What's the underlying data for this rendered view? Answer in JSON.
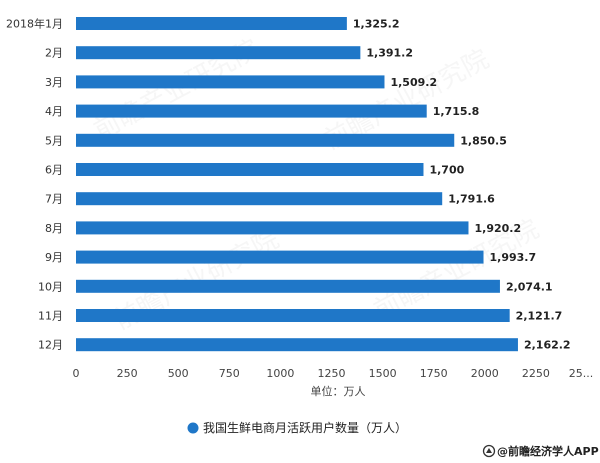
{
  "chart_data": {
    "type": "bar",
    "orientation": "horizontal",
    "categories": [
      "2018年1月",
      "2月",
      "3月",
      "4月",
      "5月",
      "6月",
      "7月",
      "8月",
      "9月",
      "10月",
      "11月",
      "12月"
    ],
    "values": [
      1325.2,
      1391.2,
      1509.2,
      1715.8,
      1850.5,
      1700,
      1791.6,
      1920.2,
      1993.7,
      2074.1,
      2121.7,
      2162.2
    ],
    "value_labels": [
      "1,325.2",
      "1,391.2",
      "1,509.2",
      "1,715.8",
      "1,850.5",
      "1,700",
      "1,791.6",
      "1,920.2",
      "1,993.7",
      "2,074.1",
      "2,121.7",
      "2,162.2"
    ],
    "xticks": [
      "0",
      "250",
      "500",
      "750",
      "1000",
      "1250",
      "1500",
      "1750",
      "2000",
      "2250",
      "25..."
    ],
    "xlim": [
      0,
      2500
    ],
    "xlabel": "单位：万人",
    "legend": "我国生鲜电商月活跃用户数量（万人）",
    "legend_position": "bottom",
    "grid": false,
    "color": "#1f77c8"
  },
  "footer": {
    "source": "@前瞻经济学人APP"
  },
  "icons": {
    "legend_marker": "legend-circle-icon",
    "source_logo": "source-logo-icon"
  }
}
